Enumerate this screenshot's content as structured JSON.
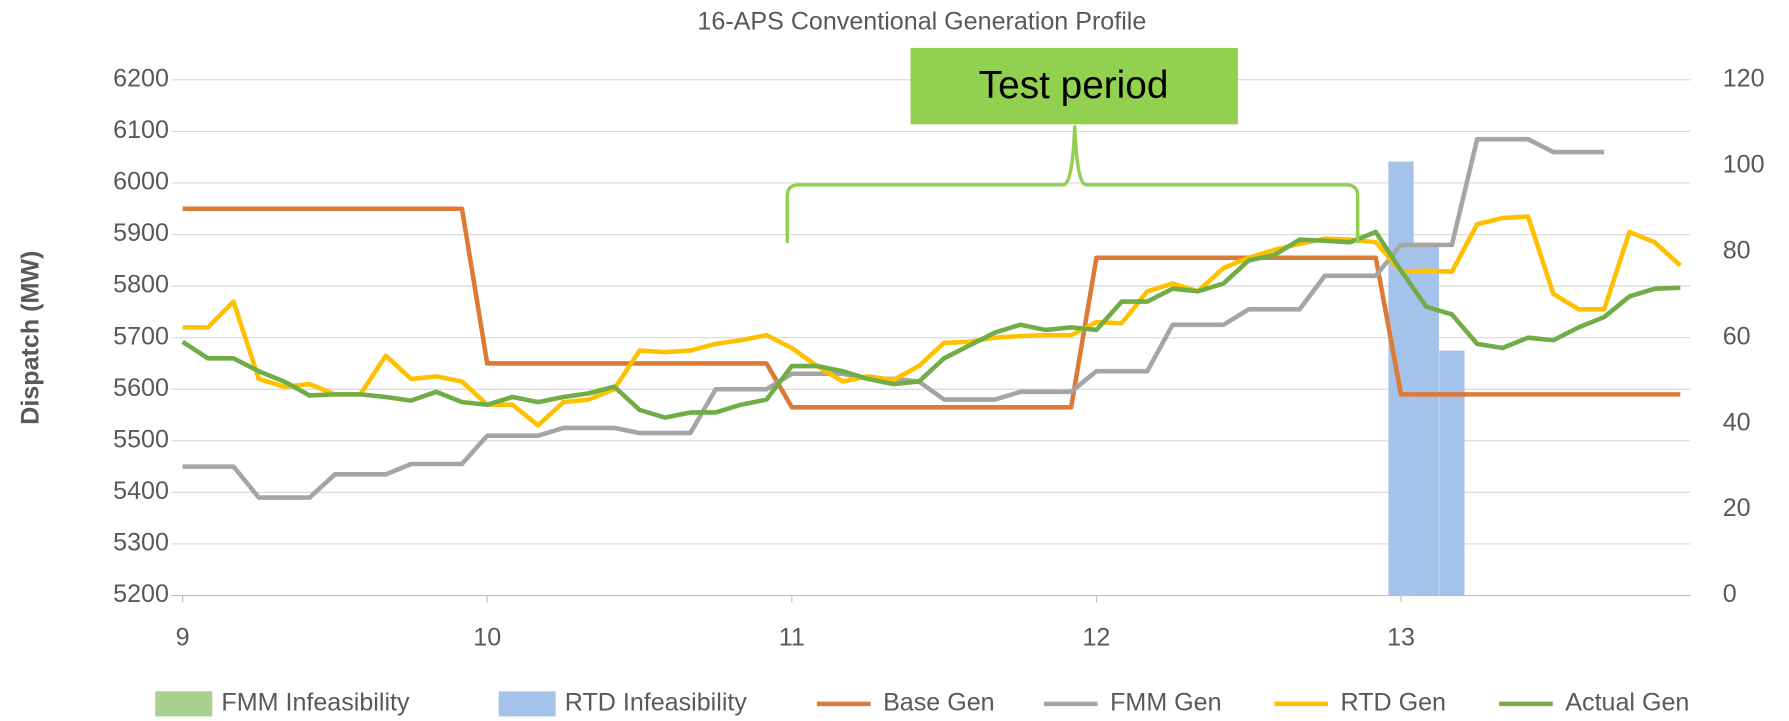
{
  "chart_data": {
    "type": "line",
    "title": "16-APS  Conventional Generation Profile",
    "y_label": "Dispatch (MW)",
    "annotation": "Test period",
    "legend": "bottom",
    "grid": true,
    "x": [
      9,
      9.083,
      9.167,
      9.25,
      9.333,
      9.417,
      9.5,
      9.583,
      9.667,
      9.75,
      9.833,
      9.917,
      10,
      10.083,
      10.167,
      10.25,
      10.333,
      10.417,
      10.5,
      10.583,
      10.667,
      10.75,
      10.833,
      10.917,
      11,
      11.083,
      11.167,
      11.25,
      11.333,
      11.417,
      11.5,
      11.583,
      11.667,
      11.75,
      11.833,
      11.917,
      12,
      12.083,
      12.167,
      12.25,
      12.333,
      12.417,
      12.5,
      12.583,
      12.667,
      12.75,
      12.833,
      12.917,
      13,
      13.083,
      13.167,
      13.25,
      13.333,
      13.417,
      13.5,
      13.583,
      13.667,
      13.75,
      13.833,
      13.917
    ],
    "xlim": [
      9,
      13.95
    ],
    "xticks": [
      9,
      10,
      11,
      12,
      13
    ],
    "ylim": [
      5200,
      6200
    ],
    "yticks": [
      5200,
      5300,
      5400,
      5500,
      5600,
      5700,
      5800,
      5900,
      6000,
      6100,
      6200
    ],
    "y2lim": [
      0,
      120
    ],
    "y2ticks": [
      0,
      20,
      40,
      60,
      80,
      100,
      120
    ],
    "series": [
      {
        "name": "FMM Infeasibility",
        "color": "#a9d18e",
        "type": "bar",
        "axis": "y2",
        "values": [
          null,
          null,
          null,
          null,
          null,
          null,
          null,
          null,
          null,
          null,
          null,
          null,
          null,
          null,
          null,
          null,
          null,
          null,
          null,
          null,
          null,
          null,
          null,
          null,
          null,
          null,
          null,
          null,
          null,
          null,
          null,
          null,
          null,
          null,
          null,
          null,
          null,
          null,
          null,
          null,
          null,
          null,
          null,
          null,
          null,
          null,
          null,
          null,
          null,
          null,
          null,
          null,
          null,
          null,
          null,
          null,
          null,
          null,
          null,
          null
        ]
      },
      {
        "name": "RTD Infeasibility",
        "color": "#a4c2ea",
        "type": "bar",
        "axis": "y2",
        "values": [
          null,
          null,
          null,
          null,
          null,
          null,
          null,
          null,
          null,
          null,
          null,
          null,
          null,
          null,
          null,
          null,
          null,
          null,
          null,
          null,
          null,
          null,
          null,
          null,
          null,
          null,
          null,
          null,
          null,
          null,
          null,
          null,
          null,
          null,
          null,
          null,
          null,
          null,
          null,
          null,
          null,
          null,
          null,
          null,
          null,
          null,
          null,
          null,
          101,
          82,
          57,
          null,
          null,
          null,
          null,
          null,
          null,
          null,
          null,
          null
        ]
      },
      {
        "name": "Base Gen",
        "color": "#dc7a36",
        "type": "line",
        "values": [
          5950,
          5950,
          5950,
          5950,
          5950,
          5950,
          5950,
          5950,
          5950,
          5950,
          5950,
          5950,
          5650,
          5650,
          5650,
          5650,
          5650,
          5650,
          5650,
          5650,
          5650,
          5650,
          5650,
          5650,
          5565,
          5565,
          5565,
          5565,
          5565,
          5565,
          5565,
          5565,
          5565,
          5565,
          5565,
          5565,
          5855,
          5855,
          5855,
          5855,
          5855,
          5855,
          5855,
          5855,
          5855,
          5855,
          5855,
          5855,
          5590,
          5590,
          5590,
          5590,
          5590,
          5590,
          5590,
          5590,
          5590,
          5590,
          5590,
          5590
        ]
      },
      {
        "name": "FMM Gen",
        "color": "#a5a5a5",
        "type": "line",
        "values": [
          5450,
          5450,
          5450,
          5390,
          5390,
          5390,
          5435,
          5435,
          5435,
          5455,
          5455,
          5455,
          5510,
          5510,
          5510,
          5525,
          5525,
          5525,
          5515,
          5515,
          5515,
          5600,
          5600,
          5600,
          5630,
          5630,
          5630,
          5620,
          5620,
          5615,
          5580,
          5580,
          5580,
          5595,
          5595,
          5595,
          5635,
          5635,
          5635,
          5725,
          5725,
          5725,
          5755,
          5755,
          5755,
          5820,
          5820,
          5820,
          5880,
          5880,
          5880,
          6085,
          6085,
          6085,
          6060,
          6060,
          6060,
          null,
          null,
          null
        ]
      },
      {
        "name": "RTD Gen",
        "color": "#ffc000",
        "type": "line",
        "values": [
          5720,
          5720,
          5770,
          5620,
          5605,
          5610,
          5590,
          5590,
          5665,
          5620,
          5625,
          5615,
          5570,
          5570,
          5530,
          5575,
          5580,
          5600,
          5675,
          5672,
          5675,
          5688,
          5695,
          5705,
          5680,
          5645,
          5615,
          5625,
          5618,
          5645,
          5690,
          5692,
          5700,
          5703,
          5705,
          5705,
          5730,
          5728,
          5790,
          5805,
          5790,
          5835,
          5855,
          5870,
          5882,
          5892,
          5890,
          5885,
          5828,
          5830,
          5828,
          5920,
          5932,
          5935,
          5785,
          5755,
          5755,
          5905,
          5885,
          5840
        ]
      },
      {
        "name": "Actual Gen",
        "color": "#70ad47",
        "type": "line",
        "values": [
          5692,
          5660,
          5660,
          5635,
          5615,
          5588,
          5590,
          5590,
          5585,
          5578,
          5595,
          5575,
          5570,
          5585,
          5575,
          5585,
          5592,
          5605,
          5560,
          5545,
          5555,
          5555,
          5570,
          5580,
          5645,
          5645,
          5635,
          5620,
          5610,
          5615,
          5660,
          5685,
          5710,
          5725,
          5715,
          5720,
          5715,
          5770,
          5770,
          5795,
          5790,
          5805,
          5850,
          5860,
          5890,
          5888,
          5885,
          5905,
          5830,
          5760,
          5745,
          5688,
          5680,
          5700,
          5695,
          5720,
          5740,
          5780,
          5795,
          5797
        ]
      }
    ]
  }
}
